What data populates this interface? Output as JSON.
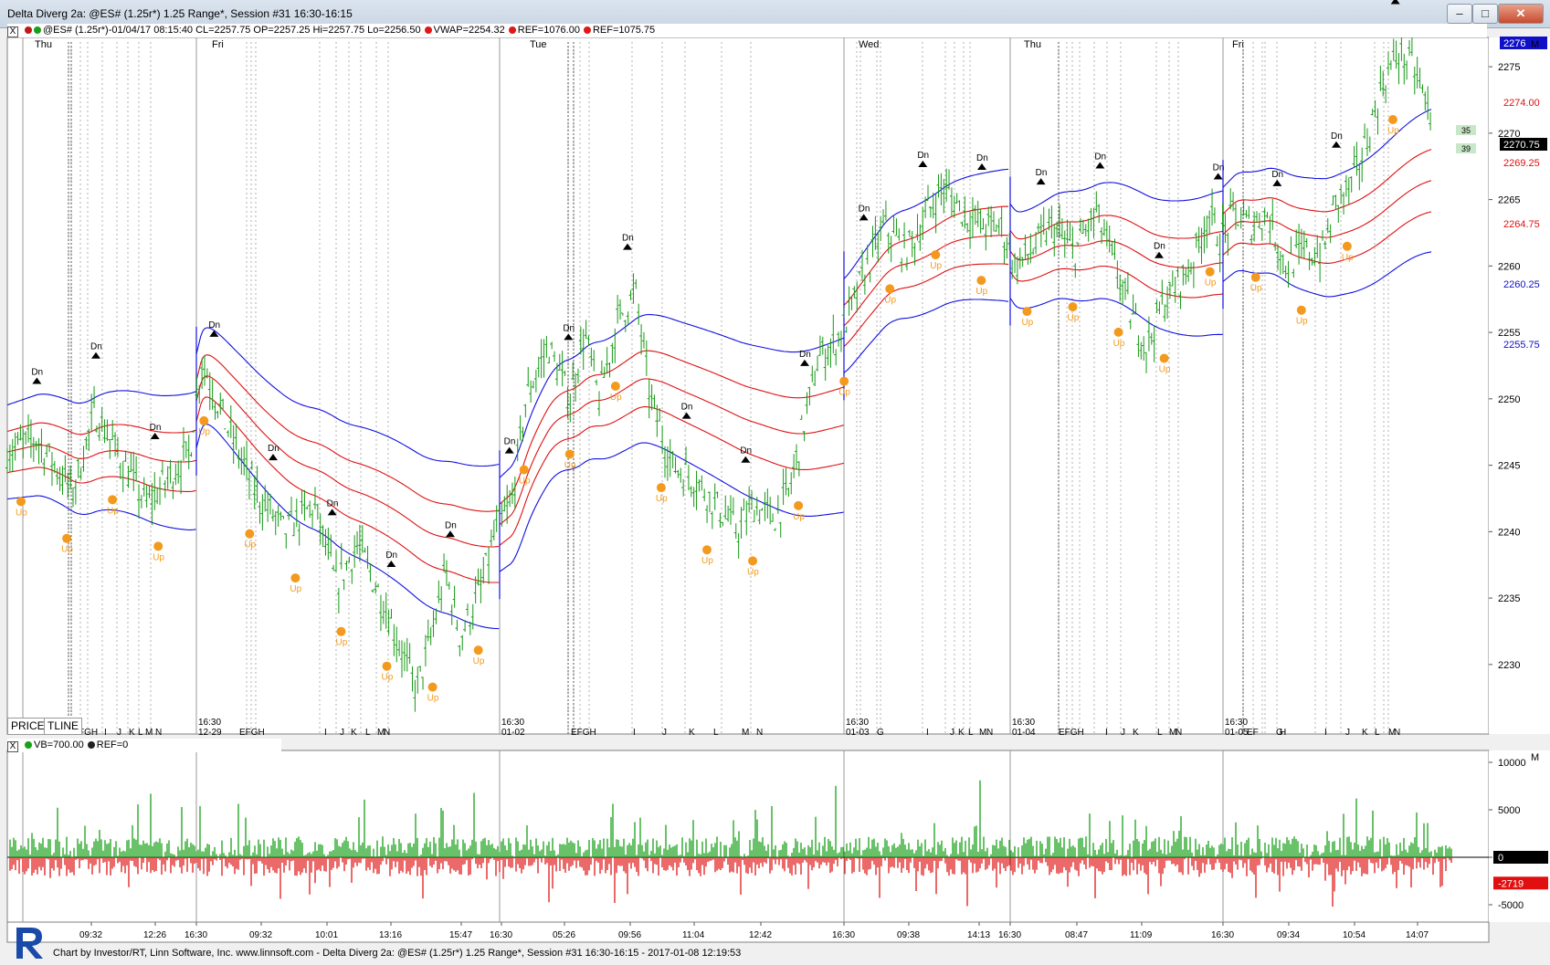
{
  "window": {
    "title": "Delta Diverg 2a: @ES# (1.25r*) 1.25 Range*, Session #31 16:30-16:15"
  },
  "header": {
    "symbol_line": "@ES# (1.25r*)-01/04/17 08:15:40 CL=2257.75 OP=2257.25 Hi=2257.75 Lo=2256.50",
    "vwap": "VWAP=2254.32",
    "ref1": "REF=1076.00",
    "ref2": "REF=1075.75",
    "close_btn": "X"
  },
  "lower_header": {
    "vb": "VB=700.00",
    "ref": "REF=0"
  },
  "tabs": [
    "PRICE",
    "TLINE"
  ],
  "footer": {
    "text": "Chart by Investor/RT, Linn Software, Inc. www.linnsoft.com - Delta Diverg 2a: @ES# (1.25r*) 1.25 Range*, Session #31 16:30-16:15 - 2017-01-08 12:19:53"
  },
  "colors": {
    "band_blue": "#1010e0",
    "band_red": "#e01010",
    "bar_green": "#149814",
    "vb_green": "#18a018",
    "vb_red": "#e01818",
    "signal_up": "#f39a1e",
    "signal_dn": "#000000"
  },
  "right_tags": {
    "top": "2276",
    "red1": "2274.00",
    "close": "2270.75",
    "red2": "2269.25",
    "red3": "2264.75",
    "blue1": "2260.25",
    "blue2": "2255.75",
    "badge1": "35",
    "badge2": "39",
    "vol_red": "-2719",
    "vol_zero": "0",
    "m_top": "M",
    "m_bottom": "M"
  },
  "chart_data": [
    {
      "type": "candlestick",
      "title": "",
      "ylim": [
        2226,
        2278
      ],
      "y_ticks": [
        2230,
        2235,
        2240,
        2245,
        2250,
        2255,
        2260,
        2265,
        2270,
        2275
      ],
      "day_labels": [
        "Thu",
        "Fri",
        "Tue",
        "Wed",
        "Thu",
        "Fri"
      ],
      "session_labels": [
        [
          "16:30",
          "12-29"
        ],
        [
          "16:30",
          "01-02"
        ],
        [
          "16:30",
          "01-03"
        ],
        [
          "16:30",
          "01-04"
        ],
        [
          "16:30",
          "01-05"
        ]
      ],
      "period_letters": [
        "FGH",
        "I",
        "J",
        "K",
        "L",
        "M",
        "N",
        "EFGH",
        "I",
        "J",
        "K",
        "L",
        "M",
        "N",
        "EFGH",
        "I",
        "J",
        "K",
        "L",
        "M",
        "N",
        "G",
        "I",
        "J",
        "K",
        "L",
        "M",
        "N",
        "EFGH",
        "I",
        "J",
        "K",
        "L",
        "M",
        "N",
        "EF",
        "G",
        "H",
        "I",
        "J",
        "K",
        "L",
        "M",
        "N"
      ],
      "price_path": [
        [
          0,
          2246
        ],
        [
          0.02,
          2247
        ],
        [
          0.045,
          2243
        ],
        [
          0.06,
          2249
        ],
        [
          0.08,
          2245
        ],
        [
          0.095,
          2242
        ],
        [
          0.11,
          2244
        ],
        [
          0.125,
          2246
        ],
        [
          0.133,
          2253
        ],
        [
          0.15,
          2248
        ],
        [
          0.17,
          2243
        ],
        [
          0.19,
          2240
        ],
        [
          0.21,
          2242
        ],
        [
          0.225,
          2236
        ],
        [
          0.24,
          2239
        ],
        [
          0.26,
          2234
        ],
        [
          0.28,
          2228
        ],
        [
          0.29,
          2232
        ],
        [
          0.3,
          2237
        ],
        [
          0.31,
          2232
        ],
        [
          0.325,
          2236
        ],
        [
          0.334,
          2240
        ],
        [
          0.345,
          2242
        ],
        [
          0.355,
          2250
        ],
        [
          0.37,
          2254
        ],
        [
          0.385,
          2250
        ],
        [
          0.395,
          2255
        ],
        [
          0.405,
          2250
        ],
        [
          0.418,
          2256
        ],
        [
          0.43,
          2258
        ],
        [
          0.44,
          2250
        ],
        [
          0.455,
          2245
        ],
        [
          0.47,
          2244
        ],
        [
          0.485,
          2242
        ],
        [
          0.5,
          2240
        ],
        [
          0.51,
          2242
        ],
        [
          0.525,
          2241
        ],
        [
          0.535,
          2243
        ],
        [
          0.545,
          2248
        ],
        [
          0.555,
          2253
        ],
        [
          0.565,
          2254
        ],
        [
          0.575,
          2256
        ],
        [
          0.585,
          2259
        ],
        [
          0.6,
          2263
        ],
        [
          0.615,
          2261
        ],
        [
          0.625,
          2263
        ],
        [
          0.64,
          2266
        ],
        [
          0.655,
          2264
        ],
        [
          0.668,
          2263
        ],
        [
          0.68,
          2263
        ],
        [
          0.69,
          2260
        ],
        [
          0.7,
          2261
        ],
        [
          0.715,
          2263
        ],
        [
          0.73,
          2261
        ],
        [
          0.745,
          2264
        ],
        [
          0.755,
          2261
        ],
        [
          0.77,
          2256
        ],
        [
          0.78,
          2254
        ],
        [
          0.79,
          2257
        ],
        [
          0.81,
          2260
        ],
        [
          0.822,
          2264
        ],
        [
          0.83,
          2262
        ],
        [
          0.84,
          2264
        ],
        [
          0.85,
          2263
        ],
        [
          0.862,
          2264
        ],
        [
          0.875,
          2260
        ],
        [
          0.887,
          2261
        ],
        [
          0.9,
          2261
        ],
        [
          0.91,
          2265
        ],
        [
          0.92,
          2266
        ],
        [
          0.932,
          2270
        ],
        [
          0.942,
          2274
        ],
        [
          0.952,
          2276
        ],
        [
          0.962,
          2275
        ],
        [
          0.975,
          2271
        ]
      ],
      "signals_dn_count": 24,
      "signals_up_count": 31
    },
    {
      "type": "bar",
      "title": "",
      "series": [
        {
          "name": "VB",
          "note": ""
        }
      ],
      "ylim": [
        -7000,
        11000
      ],
      "y_ticks": [
        10000,
        5000,
        0,
        -5000
      ],
      "last_value": -2719,
      "time_labels": [
        "09:32",
        "12:26",
        "16:30",
        "09:32",
        "10:01",
        "13:16",
        "15:47",
        "16:30",
        "05:26",
        "09:56",
        "11:04",
        "12:42",
        "16:30",
        "09:38",
        "14:13",
        "16:30",
        "08:47",
        "11:09",
        "16:30",
        "09:34",
        "10:54",
        "14:07"
      ]
    }
  ]
}
